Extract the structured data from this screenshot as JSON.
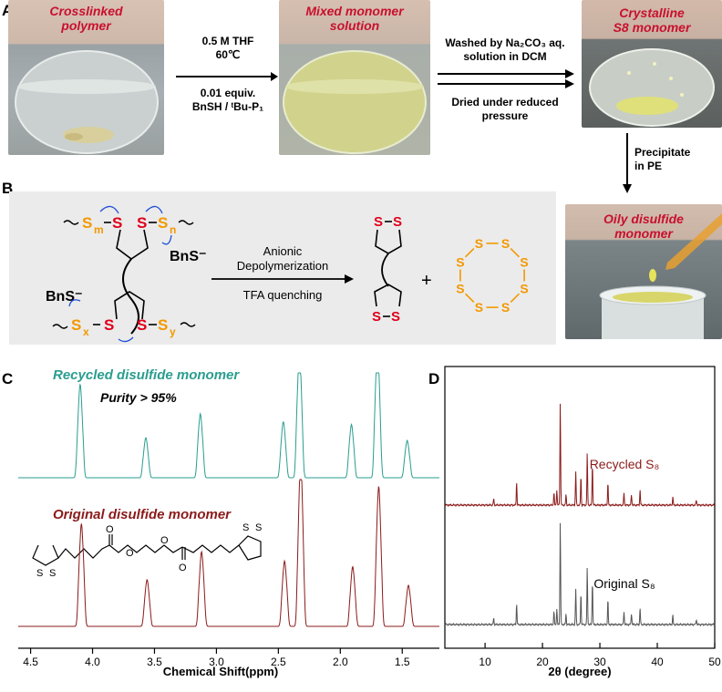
{
  "panels": {
    "A": "A",
    "B": "B",
    "C": "C",
    "D": "D"
  },
  "panelA": {
    "photo1_label": [
      "Crosslinked",
      "polymer"
    ],
    "photo2_label": [
      "Mixed monomer",
      "solution"
    ],
    "photo3_label": [
      "Crystalline",
      "S8 monomer"
    ],
    "photo4_label": [
      "Oily disulfide",
      "monomer"
    ],
    "step1_top": [
      "0.5 M THF",
      "60℃"
    ],
    "step1_bottom": [
      "0.01 equiv.",
      "BnSH / ᵗBu-P₁"
    ],
    "step2_top": [
      "Washed by Na₂CO₃ aq.",
      "solution in DCM"
    ],
    "step2_bottom": [
      "Dried under reduced",
      "pressure"
    ],
    "step3": [
      "Precipitate",
      "in PE"
    ]
  },
  "panelB": {
    "arrow_top": [
      "Anionic",
      "Depolymerization"
    ],
    "arrow_bottom": "TFA quenching",
    "plus": "+",
    "bns": "BnS⁻",
    "s": "S",
    "sub_m": "m",
    "sub_n": "n",
    "sub_x": "x",
    "sub_y": "y",
    "colors": {
      "red": "#e0001b",
      "orange": "#f39800",
      "blue": "#1f4fd8",
      "bg": "#ebebeb"
    }
  },
  "panelC": {
    "recycled_label": "Recycled disulfide monomer",
    "purity": "Purity > 95%",
    "original_label": "Original disulfide monomer",
    "xlabel": "Chemical Shift(ppm)",
    "xticks": [
      "4.5",
      "4.0",
      "3.5",
      "3.0",
      "2.5",
      "2.0",
      "1.5"
    ],
    "struct_s": "S",
    "struct_o": "O",
    "colors": {
      "recycled": "#2a9d8f",
      "original": "#8b1a1a"
    }
  },
  "panelD": {
    "recycled_label": "Recycled S₈",
    "original_label": "Original S₈",
    "xlabel": "2θ (degree)",
    "xticks": [
      "10",
      "20",
      "30",
      "40",
      "50"
    ],
    "colors": {
      "recycled": "#8b1a1a",
      "original": "#555555"
    }
  },
  "chart_data": [
    {
      "type": "line",
      "xlabel": "Chemical Shift(ppm)",
      "xlim": [
        4.6,
        1.2
      ],
      "series": [
        {
          "name": "Recycled disulfide monomer",
          "peaks": [
            [
              4.1,
              0.7
            ],
            [
              3.57,
              0.3
            ],
            [
              3.13,
              0.48
            ],
            [
              2.46,
              0.42
            ],
            [
              2.33,
              0.95
            ],
            [
              1.91,
              0.4
            ],
            [
              1.7,
              1.0
            ],
            [
              1.46,
              0.28
            ]
          ]
        },
        {
          "name": "Original disulfide monomer",
          "peaks": [
            [
              4.09,
              0.55
            ],
            [
              3.56,
              0.25
            ],
            [
              3.12,
              0.4
            ],
            [
              2.45,
              0.35
            ],
            [
              2.32,
              0.9
            ],
            [
              1.9,
              0.32
            ],
            [
              1.69,
              0.75
            ],
            [
              1.45,
              0.22
            ]
          ]
        }
      ]
    },
    {
      "type": "line",
      "xlabel": "2θ (degree)",
      "xlim": [
        3,
        50
      ],
      "series": [
        {
          "name": "Recycled S₈",
          "peaks": [
            [
              11.5,
              0.06
            ],
            [
              15.5,
              0.22
            ],
            [
              22.0,
              0.12
            ],
            [
              22.5,
              0.15
            ],
            [
              23.1,
              1.0
            ],
            [
              24.1,
              0.1
            ],
            [
              25.8,
              0.33
            ],
            [
              26.7,
              0.28
            ],
            [
              27.8,
              0.5
            ],
            [
              28.7,
              0.4
            ],
            [
              31.4,
              0.22
            ],
            [
              34.2,
              0.12
            ],
            [
              35.5,
              0.1
            ],
            [
              37.0,
              0.15
            ],
            [
              42.7,
              0.08
            ],
            [
              46.8,
              0.05
            ]
          ]
        },
        {
          "name": "Original S₈",
          "peaks": [
            [
              11.5,
              0.06
            ],
            [
              15.5,
              0.2
            ],
            [
              22.0,
              0.12
            ],
            [
              22.5,
              0.15
            ],
            [
              23.1,
              1.0
            ],
            [
              24.1,
              0.1
            ],
            [
              25.8,
              0.35
            ],
            [
              26.7,
              0.3
            ],
            [
              27.8,
              0.55
            ],
            [
              28.7,
              0.42
            ],
            [
              31.4,
              0.24
            ],
            [
              34.2,
              0.13
            ],
            [
              35.5,
              0.11
            ],
            [
              37.0,
              0.16
            ],
            [
              42.7,
              0.09
            ],
            [
              46.8,
              0.05
            ]
          ]
        }
      ]
    }
  ]
}
